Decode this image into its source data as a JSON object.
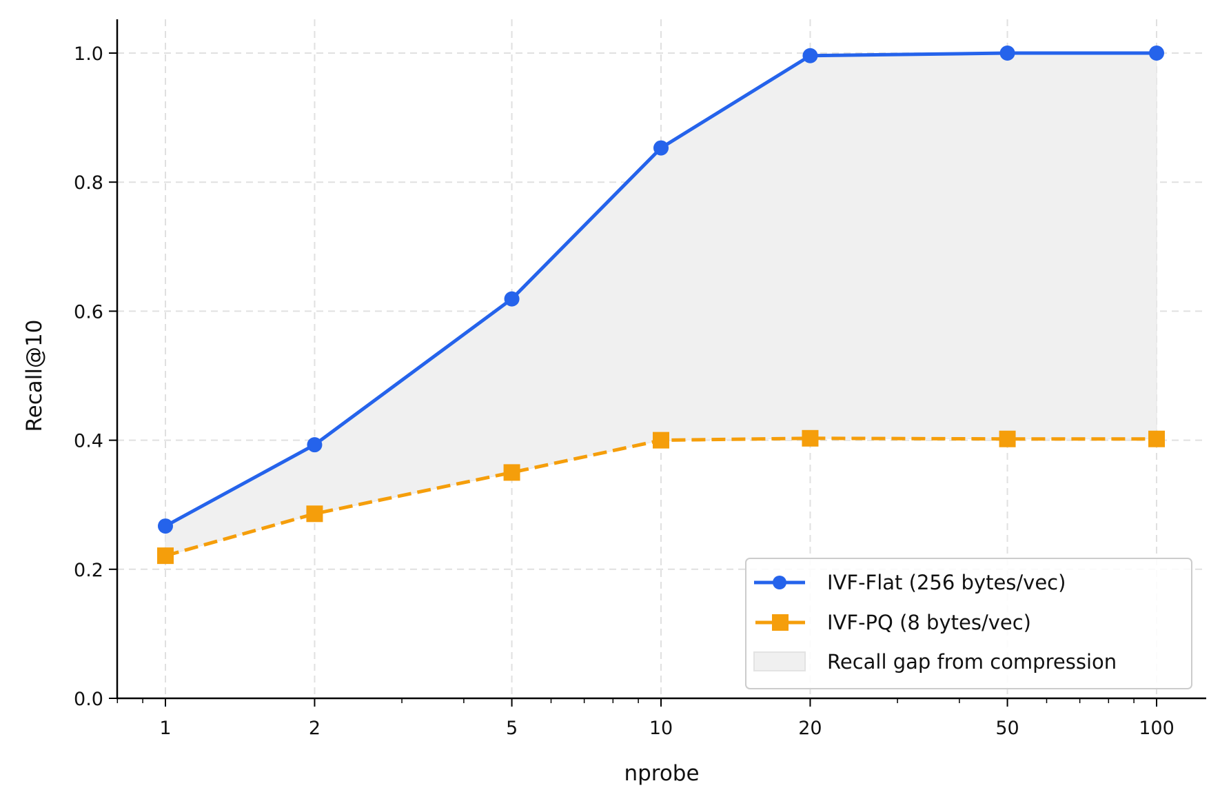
{
  "chart_data": {
    "type": "line",
    "title": "",
    "xlabel": "nprobe",
    "ylabel": "Recall@10",
    "xscale": "log",
    "x": [
      1,
      2,
      5,
      10,
      20,
      50,
      100
    ],
    "x_tick_labels": [
      "1",
      "2",
      "5",
      "10",
      "20",
      "50",
      "100"
    ],
    "y_ticks": [
      0.0,
      0.2,
      0.4,
      0.6,
      0.8,
      1.0
    ],
    "y_tick_labels": [
      "0.0",
      "0.2",
      "0.4",
      "0.6",
      "0.8",
      "1.0"
    ],
    "xlim": [
      0.8,
      125
    ],
    "ylim": [
      0.0,
      1.05
    ],
    "grid": true,
    "legend_position": "lower right",
    "series": [
      {
        "name": "IVF-Flat (256 bytes/vec)",
        "color": "#2563eb",
        "marker": "circle",
        "linestyle": "solid",
        "values": [
          0.267,
          0.393,
          0.619,
          0.853,
          0.996,
          1.0,
          1.0
        ]
      },
      {
        "name": "IVF-PQ (8 bytes/vec)",
        "color": "#f59e0b",
        "marker": "square",
        "linestyle": "dashed",
        "values": [
          0.221,
          0.286,
          0.35,
          0.4,
          0.403,
          0.402,
          0.402
        ]
      }
    ],
    "fill_between": {
      "name": "Recall gap from compression",
      "color": "#f0f0f0",
      "between": [
        "IVF-Flat (256 bytes/vec)",
        "IVF-PQ (8 bytes/vec)"
      ]
    }
  },
  "legend": {
    "items": [
      {
        "label": "IVF-Flat (256 bytes/vec)"
      },
      {
        "label": "IVF-PQ (8 bytes/vec)"
      },
      {
        "label": "Recall gap from compression"
      }
    ]
  },
  "colors": {
    "flat": "#2563eb",
    "pq": "#f59e0b",
    "gap_fill": "#f0f0f0",
    "grid": "#e0e0e0",
    "axis": "#000000"
  }
}
